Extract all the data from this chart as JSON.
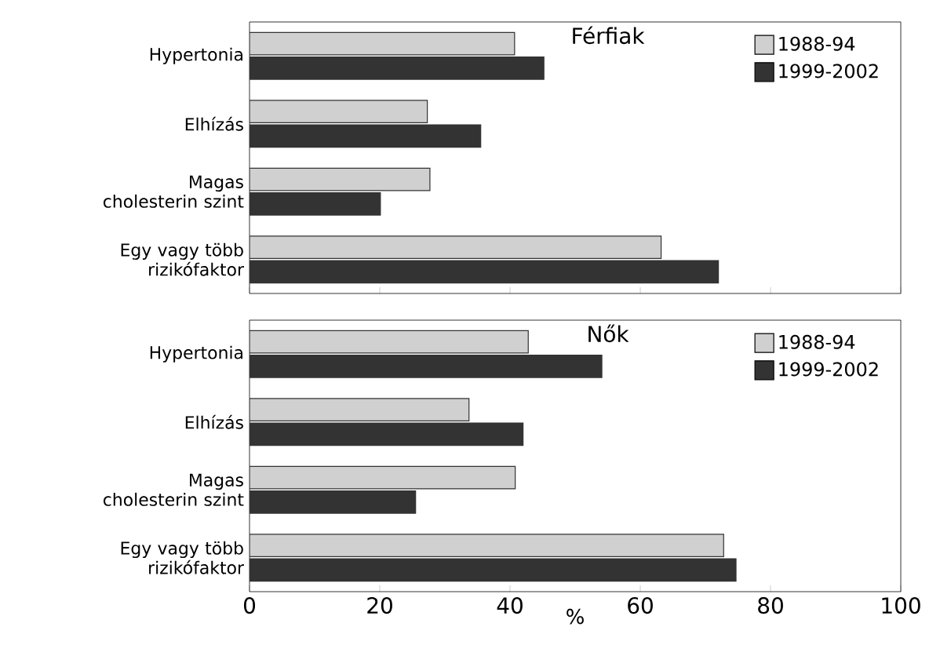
{
  "chart_data": [
    {
      "type": "bar",
      "orientation": "horizontal",
      "title": "Férfiak",
      "categories": [
        "Hypertonia",
        "Elhízás",
        "Magas cholesterin szint",
        "Egy vagy több rizikófaktor"
      ],
      "series": [
        {
          "name": "1988-94",
          "color": "#d0d0d0",
          "values": [
            40.7,
            27.3,
            27.7,
            63.2
          ]
        },
        {
          "name": "1999-2002",
          "color": "#333333",
          "values": [
            45.2,
            35.5,
            20.1,
            72.0
          ]
        }
      ],
      "xlim": [
        0,
        100
      ],
      "xticks": [
        0,
        20,
        40,
        60,
        80,
        100
      ],
      "tick_labels": "y",
      "legend": "top right"
    },
    {
      "type": "bar",
      "orientation": "horizontal",
      "title": "Nők",
      "xlabel": "%",
      "categories": [
        "Hypertonia",
        "Elhízás",
        "Magas cholesterin szint",
        "Egy vagy több rizikófaktor"
      ],
      "series": [
        {
          "name": "1988-94",
          "color": "#d0d0d0",
          "values": [
            42.8,
            33.7,
            40.8,
            72.8
          ]
        },
        {
          "name": "1999-2002",
          "color": "#333333",
          "values": [
            54.1,
            42.0,
            25.5,
            74.7
          ]
        }
      ],
      "xlim": [
        0,
        100
      ],
      "xticks": [
        0,
        20,
        40,
        60,
        80,
        100
      ],
      "legend": "top right"
    }
  ]
}
